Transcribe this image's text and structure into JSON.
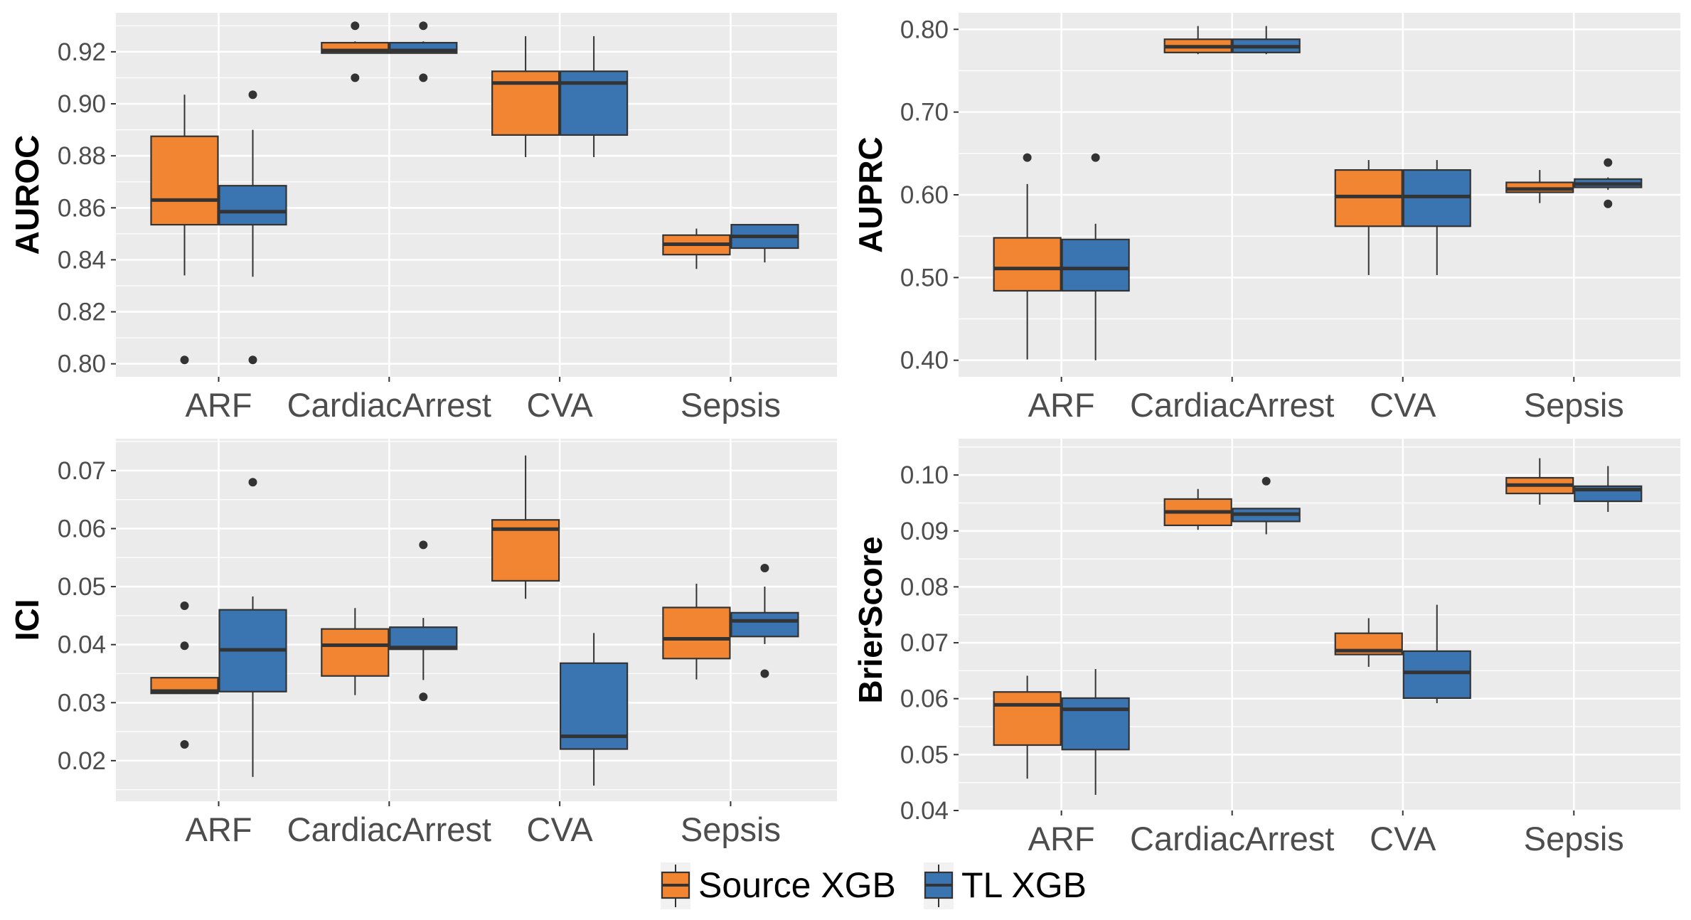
{
  "colors": {
    "source": "#F28532",
    "tl": "#3A74B1",
    "panel": "#EBEBEB",
    "grid": "#FFFFFF",
    "line": "#333333",
    "tick": "#4d4d4d"
  },
  "legend": {
    "items": [
      {
        "name": "Source XGB",
        "color": "#F28532"
      },
      {
        "name": "TL XGB",
        "color": "#3A74B1"
      }
    ]
  },
  "chart_data": [
    {
      "type": "boxplot",
      "ylabel": "AUROC",
      "ylim": [
        0.795,
        0.935
      ],
      "yticks": [
        "0.80",
        "0.82",
        "0.84",
        "0.86",
        "0.88",
        "0.90",
        "0.92"
      ],
      "categories": [
        "ARF",
        "CardiacArrest",
        "CVA",
        "Sepsis"
      ],
      "series": [
        {
          "name": "Source XGB",
          "boxes": [
            {
              "min": 0.834,
              "q1": 0.8535,
              "median": 0.863,
              "q3": 0.8875,
              "max": 0.9035,
              "outliers": [
                0.8015
              ]
            },
            {
              "min": 0.9195,
              "q1": 0.9195,
              "median": 0.9205,
              "q3": 0.9235,
              "max": 0.924,
              "outliers": [
                0.91,
                0.93
              ]
            },
            {
              "min": 0.8795,
              "q1": 0.888,
              "median": 0.908,
              "q3": 0.9125,
              "max": 0.926,
              "outliers": []
            },
            {
              "min": 0.8365,
              "q1": 0.842,
              "median": 0.846,
              "q3": 0.8495,
              "max": 0.852,
              "outliers": []
            }
          ]
        },
        {
          "name": "TL XGB",
          "boxes": [
            {
              "min": 0.8335,
              "q1": 0.8535,
              "median": 0.8585,
              "q3": 0.8685,
              "max": 0.89,
              "outliers": [
                0.8015,
                0.9035
              ]
            },
            {
              "min": 0.9195,
              "q1": 0.9195,
              "median": 0.9205,
              "q3": 0.9235,
              "max": 0.924,
              "outliers": [
                0.91,
                0.93
              ]
            },
            {
              "min": 0.8795,
              "q1": 0.888,
              "median": 0.908,
              "q3": 0.9125,
              "max": 0.926,
              "outliers": []
            },
            {
              "min": 0.839,
              "q1": 0.8445,
              "median": 0.849,
              "q3": 0.8535,
              "max": 0.8535,
              "outliers": []
            }
          ]
        }
      ]
    },
    {
      "type": "boxplot",
      "ylabel": "AUPRC",
      "ylim": [
        0.38,
        0.82
      ],
      "yticks": [
        "0.40",
        "0.50",
        "0.60",
        "0.70",
        "0.80"
      ],
      "categories": [
        "ARF",
        "CardiacArrest",
        "CVA",
        "Sepsis"
      ],
      "series": [
        {
          "name": "Source XGB",
          "boxes": [
            {
              "min": 0.401,
              "q1": 0.484,
              "median": 0.511,
              "q3": 0.548,
              "max": 0.613,
              "outliers": [
                0.645
              ]
            },
            {
              "min": 0.77,
              "q1": 0.772,
              "median": 0.779,
              "q3": 0.788,
              "max": 0.804,
              "outliers": []
            },
            {
              "min": 0.503,
              "q1": 0.562,
              "median": 0.598,
              "q3": 0.63,
              "max": 0.642,
              "outliers": []
            },
            {
              "min": 0.59,
              "q1": 0.603,
              "median": 0.607,
              "q3": 0.615,
              "max": 0.63,
              "outliers": []
            }
          ]
        },
        {
          "name": "TL XGB",
          "boxes": [
            {
              "min": 0.4,
              "q1": 0.484,
              "median": 0.511,
              "q3": 0.546,
              "max": 0.565,
              "outliers": [
                0.645
              ]
            },
            {
              "min": 0.77,
              "q1": 0.772,
              "median": 0.779,
              "q3": 0.788,
              "max": 0.804,
              "outliers": []
            },
            {
              "min": 0.503,
              "q1": 0.562,
              "median": 0.598,
              "q3": 0.63,
              "max": 0.642,
              "outliers": []
            },
            {
              "min": 0.606,
              "q1": 0.609,
              "median": 0.613,
              "q3": 0.619,
              "max": 0.621,
              "outliers": [
                0.589,
                0.639
              ]
            }
          ]
        }
      ]
    },
    {
      "type": "boxplot",
      "ylabel": "ICI",
      "ylim": [
        0.013,
        0.0755
      ],
      "yticks": [
        "0.02",
        "0.03",
        "0.04",
        "0.05",
        "0.06",
        "0.07"
      ],
      "categories": [
        "ARF",
        "CardiacArrest",
        "CVA",
        "Sepsis"
      ],
      "series": [
        {
          "name": "Source XGB",
          "boxes": [
            {
              "min": 0.0315,
              "q1": 0.0316,
              "median": 0.032,
              "q3": 0.0343,
              "max": 0.0343,
              "outliers": [
                0.0228,
                0.0398,
                0.0467
              ]
            },
            {
              "min": 0.0313,
              "q1": 0.0346,
              "median": 0.0399,
              "q3": 0.0427,
              "max": 0.0463,
              "outliers": []
            },
            {
              "min": 0.0479,
              "q1": 0.051,
              "median": 0.0599,
              "q3": 0.0615,
              "max": 0.0726,
              "outliers": []
            },
            {
              "min": 0.034,
              "q1": 0.0376,
              "median": 0.041,
              "q3": 0.0464,
              "max": 0.0505,
              "outliers": []
            }
          ]
        },
        {
          "name": "TL XGB",
          "boxes": [
            {
              "min": 0.0172,
              "q1": 0.0319,
              "median": 0.0391,
              "q3": 0.046,
              "max": 0.0483,
              "outliers": [
                0.068
              ]
            },
            {
              "min": 0.0339,
              "q1": 0.0392,
              "median": 0.0395,
              "q3": 0.043,
              "max": 0.0446,
              "outliers": [
                0.031,
                0.0572
              ]
            },
            {
              "min": 0.0157,
              "q1": 0.022,
              "median": 0.0242,
              "q3": 0.0368,
              "max": 0.042,
              "outliers": []
            },
            {
              "min": 0.0401,
              "q1": 0.0414,
              "median": 0.0441,
              "q3": 0.0455,
              "max": 0.05,
              "outliers": [
                0.035,
                0.0532
              ]
            }
          ]
        }
      ]
    },
    {
      "type": "boxplot",
      "ylabel": "BrierScore",
      "ylim": [
        0.04,
        0.1065
      ],
      "yticks": [
        "0.04",
        "0.05",
        "0.06",
        "0.07",
        "0.08",
        "0.09",
        "0.10"
      ],
      "categories": [
        "ARF",
        "CardiacArrest",
        "CVA",
        "Sepsis"
      ],
      "series": [
        {
          "name": "Source XGB",
          "boxes": [
            {
              "min": 0.0457,
              "q1": 0.0517,
              "median": 0.0589,
              "q3": 0.0612,
              "max": 0.0641,
              "outliers": []
            },
            {
              "min": 0.0902,
              "q1": 0.091,
              "median": 0.0934,
              "q3": 0.0957,
              "max": 0.0975,
              "outliers": []
            },
            {
              "min": 0.0657,
              "q1": 0.0679,
              "median": 0.0686,
              "q3": 0.0717,
              "max": 0.0744,
              "outliers": []
            },
            {
              "min": 0.0947,
              "q1": 0.0967,
              "median": 0.0982,
              "q3": 0.0995,
              "max": 0.103,
              "outliers": []
            }
          ]
        },
        {
          "name": "TL XGB",
          "boxes": [
            {
              "min": 0.0428,
              "q1": 0.0509,
              "median": 0.0581,
              "q3": 0.0601,
              "max": 0.0653,
              "outliers": []
            },
            {
              "min": 0.0894,
              "q1": 0.0917,
              "median": 0.093,
              "q3": 0.094,
              "max": 0.094,
              "outliers": [
                0.0989
              ]
            },
            {
              "min": 0.0592,
              "q1": 0.0601,
              "median": 0.0647,
              "q3": 0.0685,
              "max": 0.0768,
              "outliers": []
            },
            {
              "min": 0.0934,
              "q1": 0.0953,
              "median": 0.0974,
              "q3": 0.098,
              "max": 0.1016,
              "outliers": []
            }
          ]
        }
      ]
    }
  ]
}
